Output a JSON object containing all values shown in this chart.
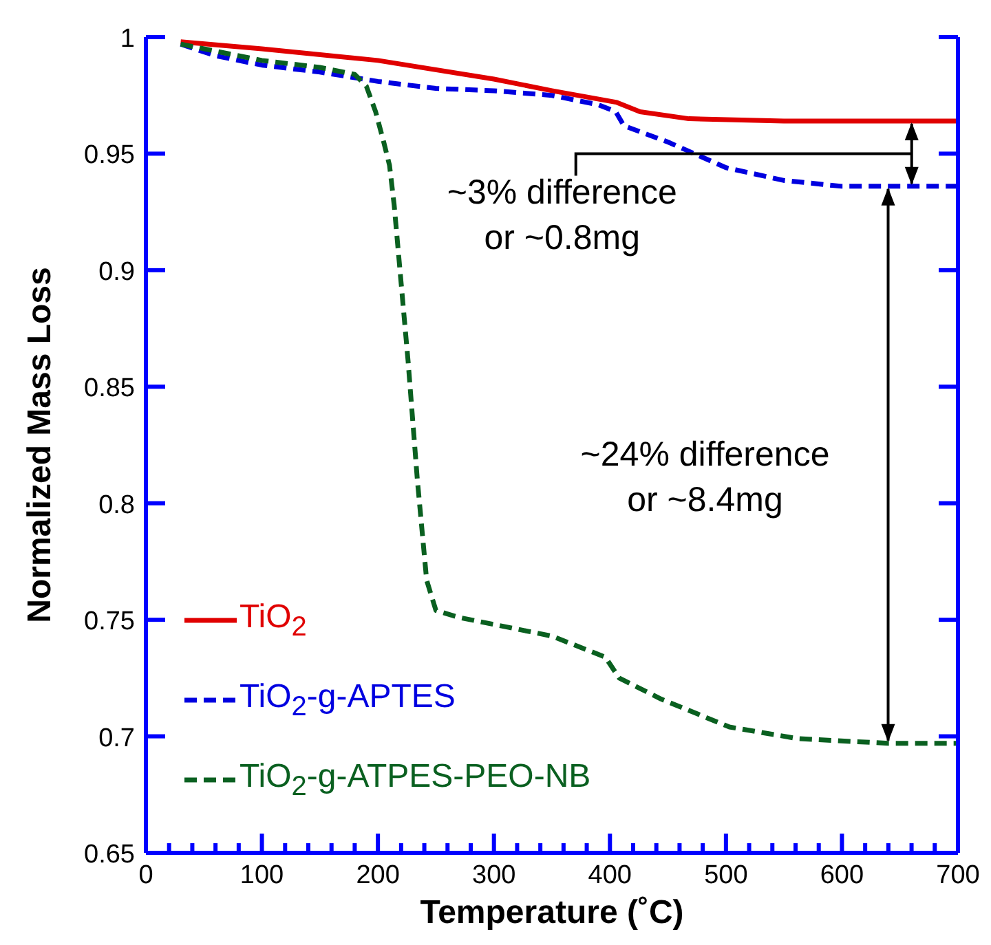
{
  "chart_data": {
    "type": "line",
    "xlabel": "Temperature (˚C)",
    "ylabel": "Normalized Mass Loss",
    "xlim": [
      0,
      700
    ],
    "ylim": [
      0.65,
      1
    ],
    "xticks": [
      0,
      {
        "value": 20,
        "label": null
      },
      {
        "value": 40,
        "label": null
      },
      {
        "value": 60,
        "label": null
      },
      {
        "value": 80,
        "label": null
      },
      100,
      {
        "value": 120,
        "label": null
      },
      {
        "value": 140,
        "label": null
      },
      {
        "value": 160,
        "label": null
      },
      {
        "value": 180,
        "label": null
      },
      200,
      {
        "value": 220,
        "label": null
      },
      {
        "value": 240,
        "label": null
      },
      {
        "value": 260,
        "label": null
      },
      {
        "value": 280,
        "label": null
      },
      300,
      {
        "value": 320,
        "label": null
      },
      {
        "value": 340,
        "label": null
      },
      {
        "value": 360,
        "label": null
      },
      {
        "value": 380,
        "label": null
      },
      400,
      {
        "value": 420,
        "label": null
      },
      {
        "value": 440,
        "label": null
      },
      {
        "value": 460,
        "label": null
      },
      {
        "value": 480,
        "label": null
      },
      500,
      {
        "value": 520,
        "label": null
      },
      {
        "value": 540,
        "label": null
      },
      {
        "value": 560,
        "label": null
      },
      {
        "value": 580,
        "label": null
      },
      600,
      {
        "value": 620,
        "label": null
      },
      {
        "value": 640,
        "label": null
      },
      {
        "value": 660,
        "label": null
      },
      {
        "value": 680,
        "label": null
      },
      700
    ],
    "yticks": [
      0.65,
      0.7,
      0.75,
      0.8,
      0.85,
      0.9,
      0.95,
      1
    ],
    "legend": "bottom left",
    "marker": "none",
    "series": [
      {
        "name": "TiO$_{2}$",
        "color": "#e00000",
        "line_style": "solid",
        "x": [
          30,
          100,
          200,
          300,
          350,
          406,
          426,
          468,
          550,
          600,
          700
        ],
        "values": [
          0.998,
          0.995,
          0.99,
          0.982,
          0.977,
          0.972,
          0.968,
          0.965,
          0.964,
          0.964,
          0.964
        ]
      },
      {
        "name": "TiO$_{2}$-g-APTES",
        "color": "#0000e0",
        "line_style": "dashed",
        "x": [
          30,
          60,
          100,
          150,
          200,
          250,
          300,
          350,
          390,
          405,
          412,
          450,
          500,
          550,
          600,
          700
        ],
        "values": [
          0.997,
          0.992,
          0.988,
          0.985,
          0.981,
          0.978,
          0.977,
          0.975,
          0.971,
          0.968,
          0.962,
          0.955,
          0.944,
          0.9385,
          0.936,
          0.936
        ]
      },
      {
        "name": "TiO$_{2}$-g-ATPES-PEO-NB",
        "color": "#0a6020",
        "line_style": "dashed",
        "x": [
          30,
          100,
          150,
          180,
          190,
          198,
          205,
          210,
          214,
          226,
          234,
          242,
          250,
          270,
          330,
          350,
          396,
          400,
          408,
          444,
          503,
          562,
          640,
          700
        ],
        "values": [
          0.997,
          0.99,
          0.987,
          0.984,
          0.979,
          0.968,
          0.955,
          0.945,
          0.928,
          0.861,
          0.81,
          0.767,
          0.754,
          0.751,
          0.745,
          0.743,
          0.734,
          0.731,
          0.725,
          0.716,
          0.704,
          0.699,
          0.697,
          0.697
        ]
      }
    ],
    "annotations": [
      "~3% difference\nor ~0.8mg",
      "~24% difference\nor ~8.4mg"
    ]
  }
}
